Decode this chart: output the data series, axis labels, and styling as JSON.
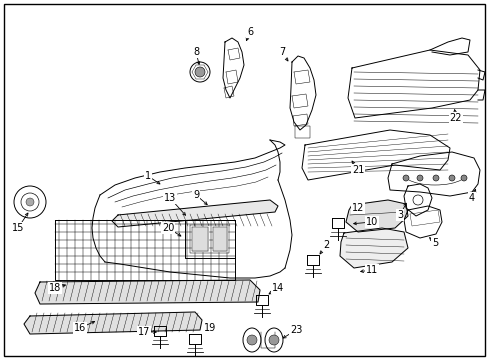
{
  "background_color": "#ffffff",
  "border_color": "#000000",
  "fig_width": 4.89,
  "fig_height": 3.6,
  "dpi": 100,
  "lw": 0.7,
  "color": "#000000",
  "label_fontsize": 7.0
}
